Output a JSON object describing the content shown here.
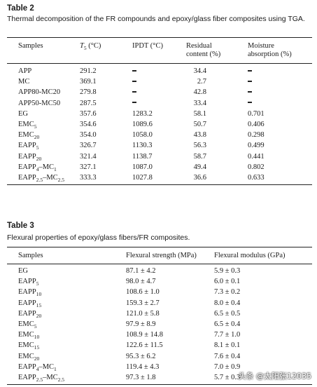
{
  "table2": {
    "label": "Table 2",
    "caption": "Thermal decomposition of the FR compounds and epoxy/glass fiber composites using TGA.",
    "headers": [
      "Samples",
      "T5 (°C)",
      "IPDT (°C)",
      "Residual content (%)",
      "Moisture absorption (%)"
    ],
    "header_parts": {
      "t5_sym": "T",
      "t5_sub": "5",
      "t5_unit": " (°C)",
      "residual_l1": "Residual",
      "residual_l2": "content (%)",
      "moisture_l1": "Moisture",
      "moisture_l2": "absorption (%)"
    },
    "rows": [
      {
        "sample": "APP",
        "t5": "291.2",
        "ipdt": "–",
        "residual": "34.4",
        "moisture": "–"
      },
      {
        "sample": "MC",
        "t5": "369.1",
        "ipdt": "–",
        "residual": "2.7",
        "moisture": "–"
      },
      {
        "sample": "APP80-MC20",
        "t5": "279.8",
        "ipdt": "–",
        "residual": "42.8",
        "moisture": "–"
      },
      {
        "sample": "APP50-MC50",
        "t5": "287.5",
        "ipdt": "–",
        "residual": "33.4",
        "moisture": "–"
      },
      {
        "sample": "EG",
        "t5": "357.6",
        "ipdt": "1283.2",
        "residual": "58.1",
        "moisture": "0.701"
      },
      {
        "sample": "EMC5",
        "t5": "354.6",
        "ipdt": "1089.6",
        "residual": "50.7",
        "moisture": "0.406"
      },
      {
        "sample": "EMC20",
        "t5": "354.0",
        "ipdt": "1058.0",
        "residual": "43.8",
        "moisture": "0.298"
      },
      {
        "sample": "EAPP5",
        "t5": "326.7",
        "ipdt": "1130.3",
        "residual": "56.3",
        "moisture": "0.499"
      },
      {
        "sample": "EAPP20",
        "t5": "321.4",
        "ipdt": "1138.7",
        "residual": "58.7",
        "moisture": "0.441"
      },
      {
        "sample": "EAPP4–MC1",
        "t5": "327.1",
        "ipdt": "1087.0",
        "residual": "49.4",
        "moisture": "0.802"
      },
      {
        "sample": "EAPP2.5–MC2.5",
        "t5": "333.3",
        "ipdt": "1027.8",
        "residual": "36.6",
        "moisture": "0.633"
      }
    ]
  },
  "table3": {
    "label": "Table 3",
    "caption": "Flexural properties of epoxy/glass fibers/FR composites.",
    "headers": [
      "Samples",
      "Flexural strength (MPa)",
      "Flexural modulus (GPa)"
    ],
    "rows": [
      {
        "sample": "EG",
        "strength": "87.1 ± 4.2",
        "modulus": "5.9 ± 0.3"
      },
      {
        "sample": "EAPP5",
        "strength": "98.0 ± 4.7",
        "modulus": "6.0 ± 0.1"
      },
      {
        "sample": "EAPP10",
        "strength": "108.6 ± 1.0",
        "modulus": "7.3 ± 0.2"
      },
      {
        "sample": "EAPP15",
        "strength": "159.3 ± 2.7",
        "modulus": "8.0 ± 0.4"
      },
      {
        "sample": "EAPP20",
        "strength": "121.0 ± 5.8",
        "modulus": "6.5 ± 0.5"
      },
      {
        "sample": "EMC5",
        "strength": "97.9 ± 8.9",
        "modulus": "6.5 ± 0.4"
      },
      {
        "sample": "EMC10",
        "strength": "108.9 ± 14.8",
        "modulus": "7.7 ± 1.0"
      },
      {
        "sample": "EMC15",
        "strength": "122.6 ± 11.5",
        "modulus": "8.1 ± 0.1"
      },
      {
        "sample": "EMC20",
        "strength": "95.3 ± 6.2",
        "modulus": "7.6 ± 0.4"
      },
      {
        "sample": "EAPP4–MC1",
        "strength": "119.4 ± 4.3",
        "modulus": "7.0 ± 0.9"
      },
      {
        "sample": "EAPP2.5–MC2.5",
        "strength": "97.3 ± 1.8",
        "modulus": "5.7 ± 0.3"
      }
    ]
  },
  "watermark": "头条 @太阳张12035"
}
